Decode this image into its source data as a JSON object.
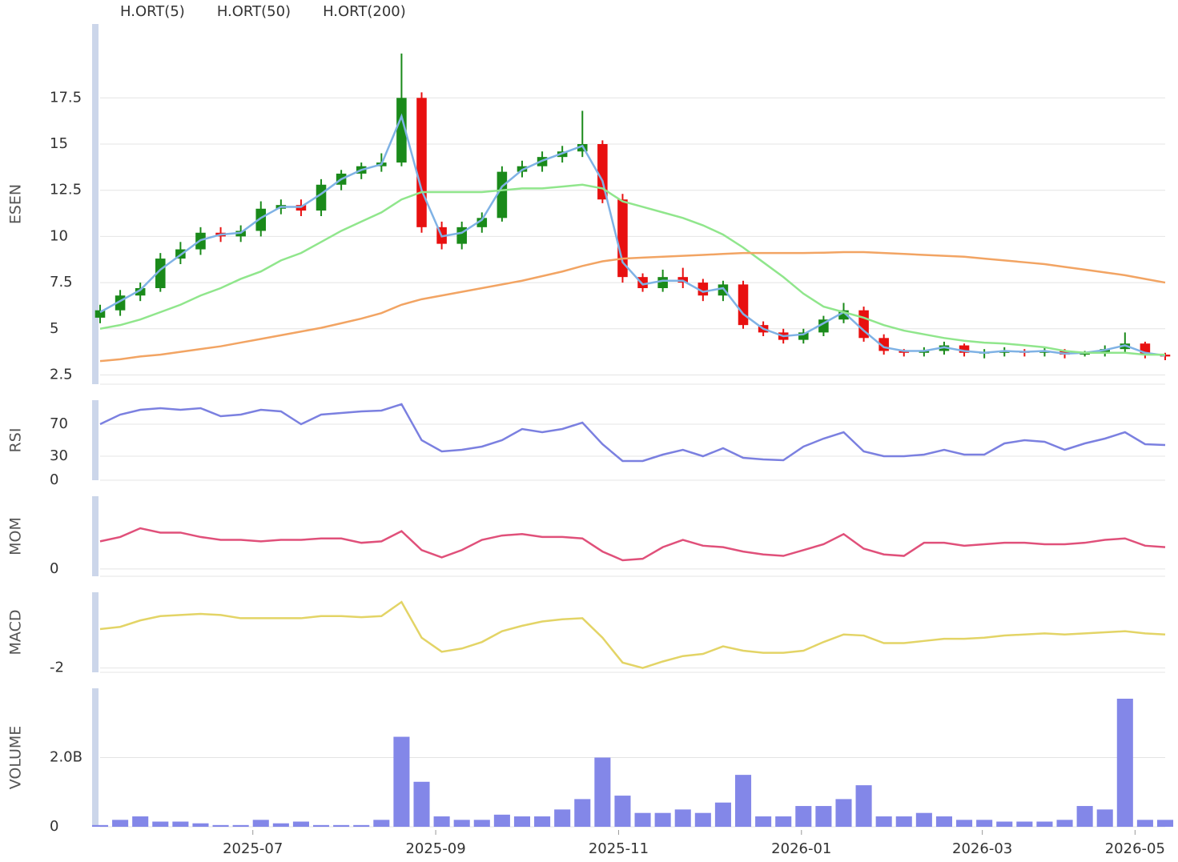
{
  "chart_data": [
    {
      "type": "candlestick",
      "ylabel": "ESEN",
      "ylim": [
        2,
        21.5
      ],
      "yticks": [
        2.5,
        5,
        7.5,
        10,
        12.5,
        15,
        17.5
      ],
      "grid": true,
      "up_color": "#1a8a1a",
      "down_color": "#e81010",
      "open": [
        5.6,
        6.0,
        6.8,
        7.2,
        8.8,
        9.3,
        10.2,
        10.0,
        10.3,
        11.5,
        11.7,
        11.4,
        12.8,
        13.4,
        13.8,
        14.0,
        17.5,
        10.5,
        9.6,
        10.5,
        11.0,
        13.5,
        13.8,
        14.3,
        14.6,
        15.0,
        12.0,
        7.8,
        7.2,
        7.8,
        7.5,
        6.8,
        7.4,
        5.2,
        4.8,
        4.4,
        4.8,
        5.5,
        6.0,
        4.5,
        3.8,
        3.7,
        3.8,
        4.1,
        3.7,
        3.7,
        3.8,
        3.7,
        3.8,
        3.6,
        3.7,
        3.9,
        4.2,
        3.6
      ],
      "high": [
        6.3,
        7.1,
        7.5,
        9.1,
        9.7,
        10.5,
        10.5,
        10.6,
        11.9,
        12.0,
        12.0,
        13.1,
        13.6,
        14.0,
        14.5,
        19.9,
        17.8,
        10.8,
        10.8,
        11.3,
        13.8,
        14.1,
        14.6,
        14.9,
        16.8,
        15.2,
        12.3,
        8.0,
        8.2,
        8.3,
        7.7,
        7.6,
        7.6,
        5.4,
        5.0,
        5.0,
        5.7,
        6.4,
        6.2,
        4.7,
        3.9,
        4.0,
        4.3,
        4.2,
        3.9,
        4.0,
        3.9,
        4.0,
        3.9,
        3.8,
        4.1,
        4.8,
        4.3,
        3.7
      ],
      "low": [
        5.3,
        5.7,
        6.5,
        7.0,
        8.5,
        9.0,
        9.7,
        9.7,
        10.0,
        11.2,
        11.1,
        11.1,
        12.5,
        13.1,
        13.5,
        13.8,
        10.2,
        9.3,
        9.3,
        10.2,
        10.8,
        13.2,
        13.5,
        14.0,
        14.3,
        11.8,
        7.5,
        7.0,
        7.0,
        7.2,
        6.5,
        6.5,
        5.0,
        4.6,
        4.2,
        4.2,
        4.6,
        5.3,
        4.3,
        3.6,
        3.5,
        3.5,
        3.6,
        3.5,
        3.4,
        3.5,
        3.5,
        3.5,
        3.4,
        3.5,
        3.5,
        3.7,
        3.4,
        3.3
      ],
      "close": [
        6.0,
        6.8,
        7.2,
        8.8,
        9.3,
        10.2,
        10.0,
        10.3,
        11.5,
        11.7,
        11.4,
        12.8,
        13.4,
        13.8,
        14.0,
        17.5,
        10.5,
        9.6,
        10.5,
        11.0,
        13.5,
        13.8,
        14.3,
        14.6,
        15.0,
        12.0,
        7.8,
        7.2,
        7.8,
        7.5,
        6.8,
        7.4,
        5.2,
        4.8,
        4.4,
        4.8,
        5.5,
        6.0,
        4.5,
        3.8,
        3.7,
        3.8,
        4.1,
        3.7,
        3.7,
        3.8,
        3.7,
        3.8,
        3.6,
        3.7,
        3.9,
        4.2,
        3.6,
        3.5
      ],
      "series": [
        {
          "name": "H.ORT(5)",
          "color": "#7fb2e5",
          "values": [
            5.9,
            6.5,
            7.1,
            8.2,
            9.0,
            9.8,
            10.1,
            10.2,
            11.0,
            11.6,
            11.6,
            12.3,
            13.1,
            13.6,
            13.9,
            16.5,
            12.5,
            10.0,
            10.2,
            10.9,
            12.7,
            13.6,
            14.1,
            14.5,
            14.9,
            13.0,
            8.6,
            7.4,
            7.6,
            7.6,
            7.0,
            7.2,
            5.8,
            5.0,
            4.6,
            4.7,
            5.3,
            5.9,
            4.9,
            4.0,
            3.8,
            3.8,
            4.0,
            3.8,
            3.7,
            3.8,
            3.75,
            3.8,
            3.65,
            3.7,
            3.85,
            4.1,
            3.7,
            3.55
          ]
        },
        {
          "name": "H.ORT(50)",
          "color": "#90e68c",
          "values": [
            5.0,
            5.2,
            5.5,
            5.9,
            6.3,
            6.8,
            7.2,
            7.7,
            8.1,
            8.7,
            9.1,
            9.7,
            10.3,
            10.8,
            11.3,
            12.0,
            12.4,
            12.4,
            12.4,
            12.4,
            12.5,
            12.6,
            12.6,
            12.7,
            12.8,
            12.6,
            11.9,
            11.6,
            11.3,
            11.0,
            10.6,
            10.1,
            9.4,
            8.6,
            7.8,
            6.9,
            6.2,
            5.9,
            5.6,
            5.2,
            4.9,
            4.7,
            4.5,
            4.35,
            4.25,
            4.2,
            4.1,
            4.0,
            3.8,
            3.7,
            3.7,
            3.7,
            3.6,
            3.6
          ]
        },
        {
          "name": "H.ORT(200)",
          "color": "#f2a463",
          "values": [
            3.25,
            3.35,
            3.5,
            3.6,
            3.75,
            3.9,
            4.05,
            4.25,
            4.45,
            4.65,
            4.85,
            5.05,
            5.3,
            5.55,
            5.85,
            6.3,
            6.6,
            6.8,
            7.0,
            7.2,
            7.4,
            7.6,
            7.85,
            8.1,
            8.4,
            8.65,
            8.8,
            8.85,
            8.9,
            8.95,
            9.0,
            9.05,
            9.1,
            9.1,
            9.1,
            9.1,
            9.12,
            9.15,
            9.15,
            9.1,
            9.05,
            9.0,
            8.95,
            8.9,
            8.8,
            8.7,
            8.6,
            8.5,
            8.35,
            8.2,
            8.05,
            7.9,
            7.7,
            7.5
          ]
        }
      ]
    },
    {
      "type": "line",
      "ylabel": "RSI",
      "ylim": [
        0,
        100
      ],
      "yticks": [
        0,
        30,
        70
      ],
      "grid": true,
      "color": "#7b80e0",
      "values": [
        70,
        82,
        88,
        90,
        88,
        90,
        80,
        82,
        88,
        86,
        70,
        82,
        84,
        86,
        87,
        95,
        50,
        36,
        38,
        42,
        50,
        64,
        60,
        64,
        72,
        45,
        24,
        24,
        32,
        38,
        30,
        40,
        28,
        26,
        25,
        42,
        52,
        60,
        36,
        30,
        30,
        32,
        38,
        32,
        32,
        46,
        50,
        48,
        38,
        46,
        52,
        60,
        45,
        44
      ]
    },
    {
      "type": "line",
      "ylabel": "MOM",
      "ylim": [
        -0.5,
        5
      ],
      "yticks": [
        0
      ],
      "grid": true,
      "color": "#e0507a",
      "values": [
        1.9,
        2.2,
        2.8,
        2.5,
        2.5,
        2.2,
        2.0,
        2.0,
        1.9,
        2.0,
        2.0,
        2.1,
        2.1,
        1.8,
        1.9,
        2.6,
        1.3,
        0.8,
        1.3,
        2.0,
        2.3,
        2.4,
        2.2,
        2.2,
        2.1,
        1.2,
        0.6,
        0.7,
        1.5,
        2.0,
        1.6,
        1.5,
        1.2,
        1.0,
        0.9,
        1.3,
        1.7,
        2.4,
        1.4,
        1.0,
        0.9,
        1.8,
        1.8,
        1.6,
        1.7,
        1.8,
        1.8,
        1.7,
        1.7,
        1.8,
        2.0,
        2.1,
        1.6,
        1.5
      ]
    },
    {
      "type": "line",
      "ylabel": "MACD",
      "ylim": [
        -2.2,
        1.5
      ],
      "yticks": [
        -2
      ],
      "grid": true,
      "color": "#e3d466",
      "values": [
        -0.2,
        -0.1,
        0.2,
        0.4,
        0.45,
        0.5,
        0.45,
        0.3,
        0.3,
        0.3,
        0.3,
        0.4,
        0.4,
        0.35,
        0.4,
        1.05,
        -0.6,
        -1.25,
        -1.1,
        -0.8,
        -0.3,
        -0.05,
        0.15,
        0.25,
        0.3,
        -0.6,
        -1.75,
        -2.0,
        -1.7,
        -1.45,
        -1.35,
        -1.0,
        -1.2,
        -1.3,
        -1.3,
        -1.2,
        -0.8,
        -0.45,
        -0.5,
        -0.85,
        -0.85,
        -0.75,
        -0.65,
        -0.65,
        -0.6,
        -0.5,
        -0.45,
        -0.4,
        -0.45,
        -0.4,
        -0.35,
        -0.3,
        -0.4,
        -0.45
      ]
    },
    {
      "type": "bar",
      "ylabel": "VOLUME",
      "ylim": [
        0,
        4000000000
      ],
      "yticks": [
        0,
        {
          "value": 2000000000,
          "label": "2.0B"
        }
      ],
      "grid": true,
      "color": "#8387e8",
      "values": [
        50000000,
        200000000,
        300000000,
        150000000,
        150000000,
        100000000,
        50000000,
        50000000,
        200000000,
        100000000,
        150000000,
        50000000,
        50000000,
        50000000,
        200000000,
        2600000000,
        1300000000,
        300000000,
        200000000,
        200000000,
        350000000,
        300000000,
        300000000,
        500000000,
        800000000,
        2000000000,
        900000000,
        400000000,
        400000000,
        500000000,
        400000000,
        700000000,
        1500000000,
        300000000,
        300000000,
        600000000,
        600000000,
        800000000,
        1200000000,
        300000000,
        300000000,
        400000000,
        300000000,
        200000000,
        200000000,
        150000000,
        150000000,
        150000000,
        200000000,
        600000000,
        500000000,
        3700000000,
        200000000,
        200000000
      ],
      "xlim": [
        0,
        53
      ],
      "xticks": [
        {
          "value": 7.6,
          "label": "2025-07"
        },
        {
          "value": 16.7,
          "label": "2025-09"
        },
        {
          "value": 25.8,
          "label": "2025-11"
        },
        {
          "value": 34.9,
          "label": "2026-01"
        },
        {
          "value": 43.9,
          "label": "2026-03"
        },
        {
          "value": 51.5,
          "label": "2026-05"
        }
      ]
    }
  ]
}
